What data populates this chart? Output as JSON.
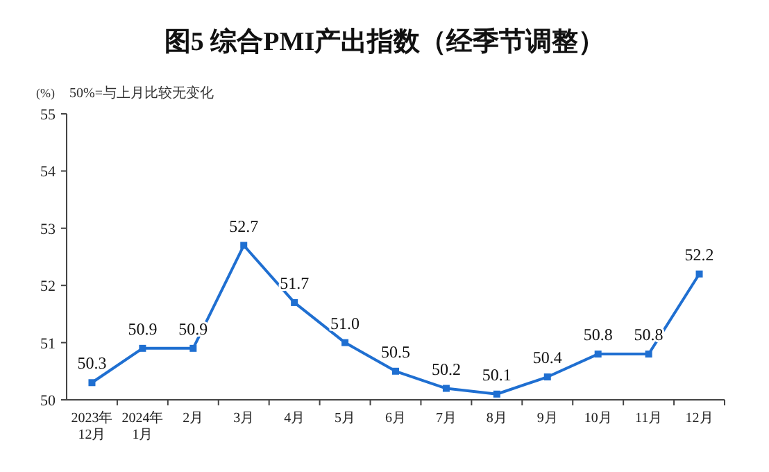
{
  "chart_data": {
    "type": "line",
    "title": "图5  综合PMI产出指数（经季节调整）",
    "ylabel": "(%)",
    "annotations": [
      "50%=与上月比较无变化"
    ],
    "categories": [
      "2023年\n12月",
      "2024年\n1月",
      "2月",
      "3月",
      "4月",
      "5月",
      "6月",
      "7月",
      "8月",
      "9月",
      "10月",
      "11月",
      "12月"
    ],
    "series": [
      {
        "color": "#1f6fd1",
        "values": [
          50.3,
          50.9,
          50.9,
          52.7,
          51.7,
          51.0,
          50.5,
          50.2,
          50.1,
          50.4,
          50.8,
          50.8,
          52.2
        ],
        "value_labels": [
          "50.3",
          "50.9",
          "50.9",
          "52.7",
          "51.7",
          "51.0",
          "50.5",
          "50.2",
          "50.1",
          "50.4",
          "50.8",
          "50.8",
          "52.2"
        ]
      }
    ],
    "ylim": [
      50,
      55
    ],
    "yticks": [
      50,
      51,
      52,
      53,
      54,
      55
    ],
    "grid": false,
    "marker": "square",
    "line_style": "solid"
  }
}
